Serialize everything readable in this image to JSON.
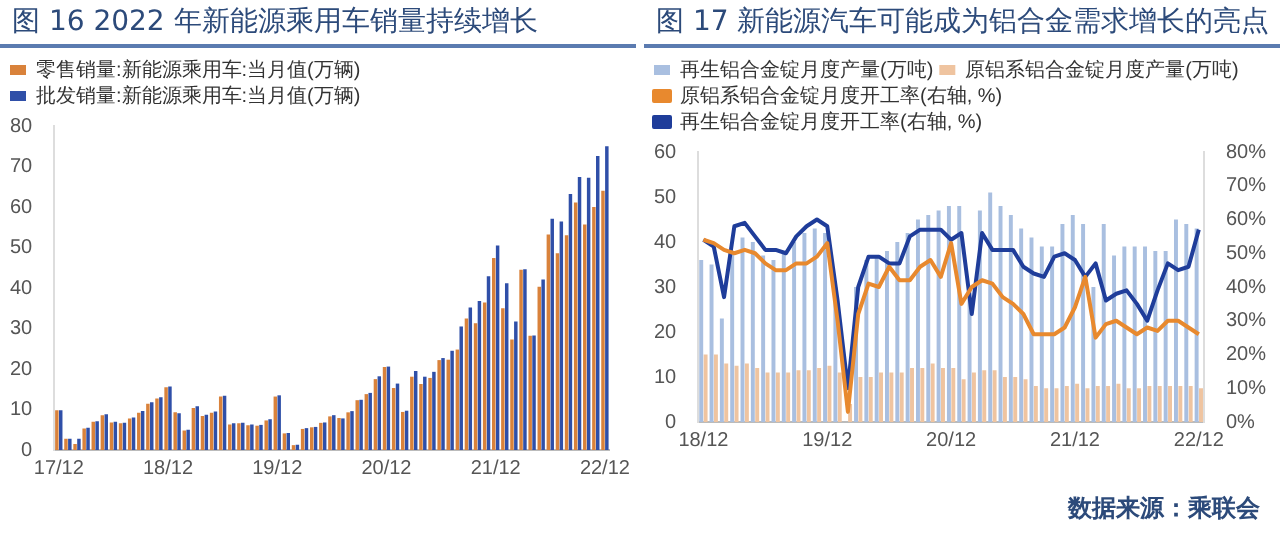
{
  "chart_data": [
    {
      "type": "bar",
      "title": "图 16 2022 年新能源乘用车销量持续增长",
      "categories": [
        "17/12",
        null,
        null,
        null,
        null,
        null,
        null,
        null,
        null,
        null,
        null,
        null,
        "18/12",
        null,
        null,
        null,
        null,
        null,
        null,
        null,
        null,
        null,
        null,
        null,
        "19/12",
        null,
        null,
        null,
        null,
        null,
        null,
        null,
        null,
        null,
        null,
        null,
        "20/12",
        null,
        null,
        null,
        null,
        null,
        null,
        null,
        null,
        null,
        null,
        null,
        "21/12",
        null,
        null,
        null,
        null,
        null,
        null,
        null,
        null,
        null,
        null,
        null,
        "22/12"
      ],
      "series": [
        {
          "name": "零售销量:新能源乘用车:当月值(万辆)",
          "color": "#d9823b",
          "values": [
            9.8,
            2.8,
            1.5,
            5.3,
            7,
            8.6,
            6.8,
            6.6,
            7.8,
            9.2,
            11.4,
            12.7,
            15.5,
            9.3,
            4.8,
            10.4,
            8.4,
            9.2,
            13.2,
            6.3,
            6.6,
            6.1,
            6,
            7.3,
            13.2,
            4.1,
            1.2,
            5.2,
            5.6,
            6.7,
            8.3,
            7.9,
            9.3,
            12.3,
            13.8,
            17.5,
            20.5,
            15.3,
            9.4,
            18.1,
            16.3,
            17.8,
            22.2,
            22.3,
            24.8,
            32.5,
            31.3,
            36.4,
            47.4,
            35,
            27.3,
            44.5,
            28.2,
            40.3,
            53.2,
            48.6,
            53,
            61.1,
            55.7,
            60,
            64
          ]
        },
        {
          "name": "批发销量:新能源乘用车:当月值(万辆)",
          "color": "#2f4fa8",
          "values": [
            9.8,
            2.8,
            2.8,
            5.5,
            7.1,
            8.8,
            7,
            6.7,
            8,
            9.6,
            11.8,
            13,
            15.7,
            9.1,
            5,
            10.8,
            8.7,
            9.5,
            13.4,
            6.6,
            6.7,
            6.3,
            6.2,
            7.6,
            13.5,
            4.2,
            1.3,
            5.4,
            5.7,
            6.8,
            8.6,
            7.8,
            9.6,
            12.4,
            14.1,
            18.2,
            20.6,
            16.4,
            9.7,
            19.5,
            18.1,
            19.3,
            22.7,
            24.5,
            30.5,
            35.2,
            36.8,
            42.9,
            50.5,
            41.2,
            31.7,
            44.6,
            28.3,
            42.1,
            57.1,
            56.4,
            63.2,
            67.4,
            67.2,
            72.6,
            75
          ]
        }
      ],
      "ylim": [
        0,
        80
      ],
      "yticks": [
        0,
        10,
        20,
        30,
        40,
        50,
        60,
        70,
        80
      ],
      "grid": false,
      "legend": "top left"
    },
    {
      "type": "bar",
      "title": "图 17 新能源汽车可能成为铝合金需求增长的亮点",
      "categories": [
        "18/12",
        null,
        null,
        null,
        null,
        null,
        null,
        null,
        null,
        null,
        null,
        null,
        "19/12",
        null,
        null,
        null,
        null,
        null,
        null,
        null,
        null,
        null,
        null,
        null,
        "20/12",
        null,
        null,
        null,
        null,
        null,
        null,
        null,
        null,
        null,
        null,
        null,
        "21/12",
        null,
        null,
        null,
        null,
        null,
        null,
        null,
        null,
        null,
        null,
        null,
        "22/12"
      ],
      "series": [
        {
          "name": "再生铝合金锭月度产量(万吨)",
          "color": "#a9bfe0",
          "values": [
            36,
            35,
            23,
            38,
            41,
            40,
            37,
            36,
            38,
            40,
            42,
            43,
            42,
            30,
            null,
            30,
            36,
            37,
            38,
            40,
            42,
            45,
            46,
            47,
            48,
            48,
            30,
            47,
            51,
            48,
            46,
            43,
            41,
            39,
            39,
            44,
            46,
            44,
            30,
            44,
            37,
            39,
            39,
            39,
            38,
            38,
            45,
            44,
            43
          ]
        },
        {
          "name": "原铝系铝合金锭月度产量(万吨)",
          "color": "#efc4a0",
          "values": [
            15,
            15,
            13,
            12.5,
            13,
            12,
            11,
            11,
            11,
            11.5,
            11.5,
            12,
            12.5,
            11,
            4,
            10,
            10,
            11,
            11,
            11,
            12,
            12,
            13,
            12,
            12,
            9.5,
            11,
            11.5,
            11.5,
            10,
            10,
            9.5,
            8,
            7.5,
            7.5,
            8,
            8.5,
            7.5,
            8,
            8,
            8.5,
            7.5,
            7.5,
            8,
            8,
            8,
            8,
            8,
            7.5
          ]
        },
        {
          "name": "原铝系铝合金锭月度开工率(右轴, %)",
          "color": "#e8892e",
          "type": "line",
          "axis": "y2",
          "values": [
            54,
            53,
            51,
            50,
            51,
            50,
            47,
            45,
            45,
            47,
            47,
            49,
            53,
            30,
            3,
            32,
            41,
            40,
            46,
            42,
            42,
            46,
            48,
            43,
            53,
            35,
            40,
            42,
            41,
            37,
            35,
            32,
            26,
            26,
            26,
            28,
            34,
            43,
            25,
            29,
            30,
            28,
            26,
            28,
            27,
            30,
            30,
            28,
            26
          ]
        },
        {
          "name": "再生铝合金锭月度开工率(右轴, %)",
          "color": "#1f3d9a",
          "type": "line",
          "axis": "y2",
          "values": [
            54,
            52,
            37,
            58,
            59,
            55,
            51,
            51,
            50,
            55,
            58,
            60,
            58,
            36,
            10,
            40,
            49,
            49,
            47,
            47,
            55,
            57,
            57,
            57,
            54,
            56,
            32,
            56,
            51,
            51,
            51,
            46,
            44,
            43,
            49,
            50,
            48,
            43,
            47,
            36,
            38,
            39,
            35,
            30,
            39,
            47,
            45,
            46,
            57
          ]
        }
      ],
      "ylim": [
        0,
        60
      ],
      "yticks": [
        0,
        10,
        20,
        30,
        40,
        50,
        60
      ],
      "y2lim": [
        0,
        80
      ],
      "y2ticks": [
        {
          "value": 0,
          "label": "0%"
        },
        {
          "value": 10,
          "label": "10%"
        },
        {
          "value": 20,
          "label": "20%"
        },
        {
          "value": 30,
          "label": "30%"
        },
        {
          "value": 40,
          "label": "40%"
        },
        {
          "value": 50,
          "label": "50%"
        },
        {
          "value": 60,
          "label": "60%"
        },
        {
          "value": 70,
          "label": "70%"
        },
        {
          "value": 80,
          "label": "80%"
        }
      ],
      "grid": false,
      "legend": "top left",
      "marker": "none",
      "annotations": [
        "数据来源：乘联会"
      ]
    }
  ]
}
